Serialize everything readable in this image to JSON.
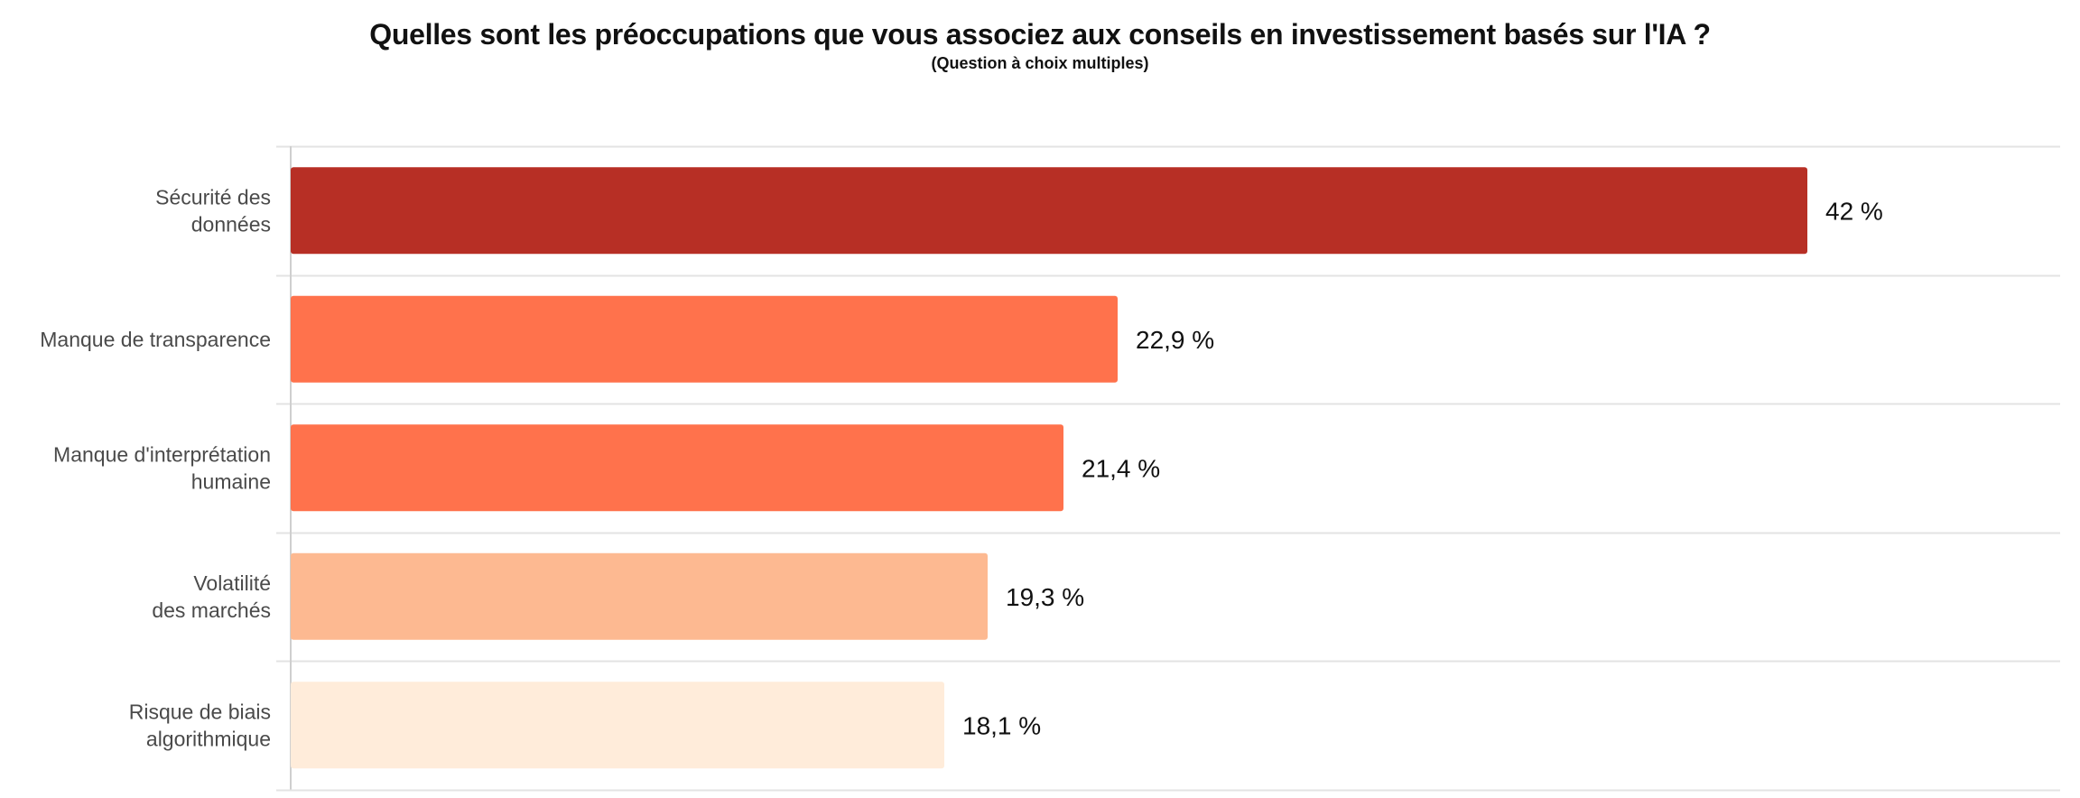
{
  "chart_data": {
    "type": "bar",
    "orientation": "horizontal",
    "title": "Quelles sont les préoccupations que vous associez aux conseils en investissement basés sur l'IA ?",
    "subtitle": "(Question à choix multiples)",
    "categories": [
      [
        "Sécurité des",
        "données"
      ],
      [
        "Manque de transparence"
      ],
      [
        "Manque d'interprétation",
        "humaine"
      ],
      [
        "Volatilité",
        "des marchés"
      ],
      [
        "Risque de biais",
        "algorithmique"
      ]
    ],
    "values": [
      42,
      22.9,
      21.4,
      19.3,
      18.1
    ],
    "value_labels": [
      "42 %",
      "22,9 %",
      "21,4 %",
      "19,3 %",
      "18,1 %"
    ],
    "colors": [
      "#b72f25",
      "#ff724c",
      "#ff724c",
      "#fdb991",
      "#ffecda"
    ],
    "xlim": [
      0,
      49
    ],
    "grid": true,
    "legend": "none"
  }
}
